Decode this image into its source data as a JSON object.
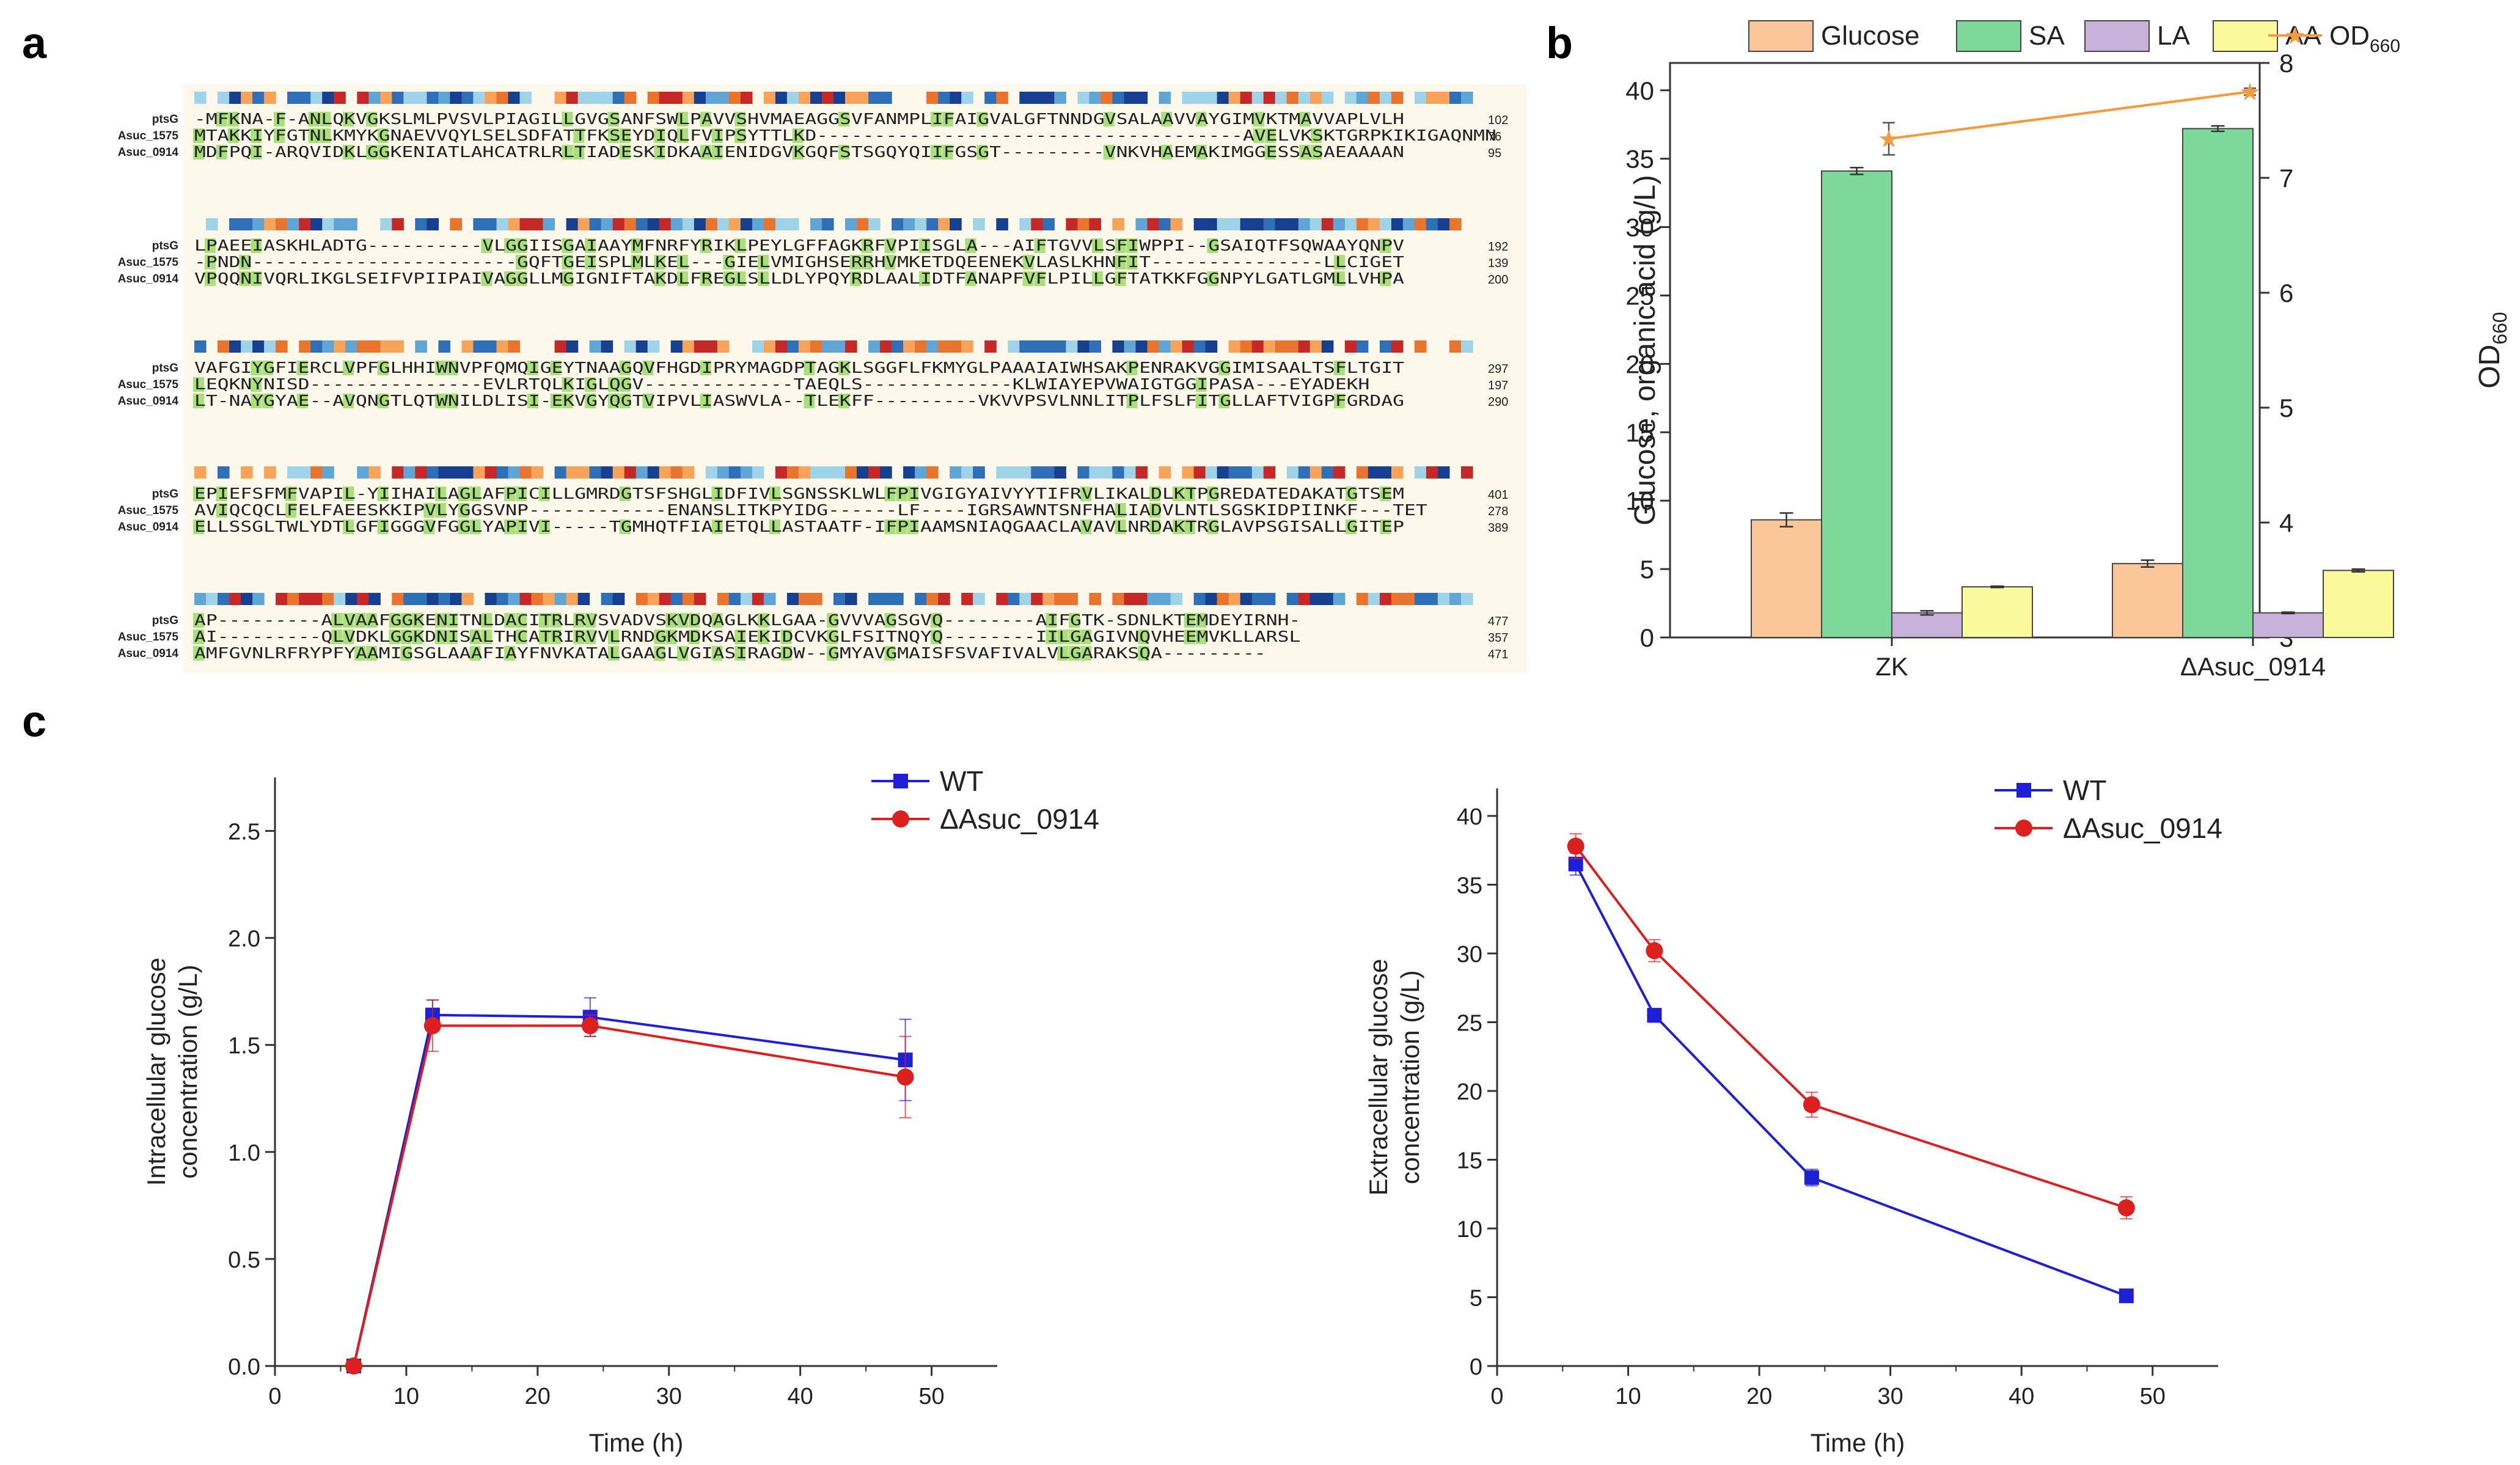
{
  "panels": {
    "a": "a",
    "b": "b",
    "c": "c"
  },
  "alignment": {
    "blocks": [
      {
        "rows": [
          {
            "name": "ptsG",
            "seq": "-MFKNA-F-ANLQKVGKSLMLPVSVLPIAGILLGVGSANFSWLPAVVSHVMAEAGGSVFANMPLIFAIGVALGFTNNDGVSALAAVVAYGIMVKTMAVVAPLVLH",
            "end": "102"
          },
          {
            "name": "Asuc_1575",
            "seq": "MTAKKIYFGTNLKMYKGNAEVVQYLSELSDFATTFKSEYDIQLFVIPSYTTLKD-------------------------------------AVELVKSKTGRPKIKIGAQNMN",
            "end": "76"
          },
          {
            "name": "Asuc_0914",
            "seq": "MDFPQI-ARQVIDKLGGKENIATLAHCATRLRLTIADESKIDKAAIENIDGVKGQFSTSGQYQIIFGSGT---------VNKVHAEMAKIMGGESSASAEAAAAN",
            "end": "95"
          }
        ]
      },
      {
        "rows": [
          {
            "name": "ptsG",
            "seq": "LPAEEIASKHLADTG----------VLGGIISGAIAAYMFNRFYRIKLPEYLGFFAGKRFVPIISGLA---AIFTGVVLSFIWPPI--GSAIQTFSQWAAYQNPV",
            "end": "192"
          },
          {
            "name": "Asuc_1575",
            "seq": "-PNDN-----------------------GQFTGEISPLMLKEL---GIELVMIGHSERRHVMKETDQEENEKVLASLKHNFIT---------------LLCIGET",
            "end": "139"
          },
          {
            "name": "Asuc_0914",
            "seq": "VPQQNIVQRLIKGLSEIFVPIIPAIVAGGLLMGIGNIFTAKDLFREGLSLLDLYPQYRDLAALIDTFANAPFVFLPILLGFTATKKFGGNPYLGATLGMLLVHPA",
            "end": "200"
          }
        ]
      },
      {
        "rows": [
          {
            "name": "ptsG",
            "seq": "VAFGIYGFIERCLVPFGLHHIWNVPFQMQIGEYTNAAGQVFHGDIPRYMAGDPTAGKLSGGFLFKMYGLPAAAIAIWHSAKPENRAKVGGIMISAALTSFLTGIT",
            "end": "297"
          },
          {
            "name": "Asuc_1575",
            "seq": "LEQKNYNISD---------------EVLRTQLKIGLQGV-------------TAEQLS-------------KLWIAYEPVWAIGTGGIPASA---EYADEKH",
            "end": "197"
          },
          {
            "name": "Asuc_0914",
            "seq": "LT-NAYGYAE--AVQNGTLQTWNILDLISI-EKVGYQGTVIPVLIASWVLA--TLEKFF---------VKVVPSVLNNLITPLFSLFITGLLAFTVIGPFGRDAG",
            "end": "290"
          }
        ]
      },
      {
        "rows": [
          {
            "name": "ptsG",
            "seq": "EPIEFSFMFVAPIL-YIIHAILAGLAFPICILLGMRDGTSFSHGLIDFIVLSGNSSKLWLFPIVGIGYAIVYYTIFRVLIKALDLKTPGREDATEDAKATGTSEM",
            "end": "401"
          },
          {
            "name": "Asuc_1575",
            "seq": "AVIQCQCLFELFAEESKKIPVLYGGSVNP------------ENANSLITKPYIDG------LF----IGRSAWNTSNFHALIADVLNTLSGSKIDPIINKF---TET",
            "end": "278"
          },
          {
            "name": "Asuc_0914",
            "seq": "ELLSSGLTWLYDTLGFIGGGVFGGLYAPIVI-----TGMHQTFIAIETQLLASTAATF-IFPIAAMSNIAQGAACLAVAVLNRDAKTRGLAVPSGISALLGITEP",
            "end": "389"
          }
        ]
      },
      {
        "rows": [
          {
            "name": "ptsG",
            "seq": "AP---------ALVAAFGGKENITNLDACITRLRVSVADVSKVDQAGLKKLGAA-GVVVAGSGVQ--------AIFGTK-SDNLKTEMDEYIRNH-",
            "end": "477"
          },
          {
            "name": "Asuc_1575",
            "seq": "AI---------QLVDKLGGKDNISALTHCATRIRVVLRNDGKMDKSAIEKIDCVKGLFSITNQYQ--------IILGAGIVNQVHEEMVKLLARSL",
            "end": "357"
          },
          {
            "name": "Asuc_0914",
            "seq": "AMFGVNLRFRYPFYAAMIGSGLAAAFIAYFNVKATALGAAGLVGIASIRAGDW--GMYAVGMAISFSVAFIVALVLGARAKSQA---------",
            "end": "471"
          }
        ]
      }
    ],
    "colors": {
      "background": "#fdf8ec",
      "highlight": "#a8e07a",
      "conservation": [
        "#173f8f",
        "#2e6fb8",
        "#5fa5d6",
        "#9fd3e8",
        "#f7a35a",
        "#e8742e",
        "#c62828"
      ]
    }
  },
  "chart_data": [
    {
      "id": "b",
      "type": "bar",
      "categories": [
        "ZK",
        "ΔAsuc_0914"
      ],
      "series": [
        {
          "name": "Glucose",
          "color": "#fbc79a",
          "values": [
            8.6,
            5.4
          ],
          "errors": [
            0.5,
            0.25
          ]
        },
        {
          "name": "SA",
          "color": "#7dd89a",
          "values": [
            34.1,
            37.2
          ],
          "errors": [
            0.25,
            0.2
          ]
        },
        {
          "name": "LA",
          "color": "#c7b1d8",
          "values": [
            1.8,
            1.8
          ],
          "errors": [
            0.15,
            0.05
          ]
        },
        {
          "name": "AA",
          "color": "#fbfa9c",
          "values": [
            3.7,
            4.9
          ],
          "errors": [
            0.05,
            0.1
          ]
        }
      ],
      "line_series": {
        "name": "OD",
        "name_sub": "660",
        "color": "#f39a3c",
        "values": [
          7.34,
          7.75
        ],
        "errors": [
          0.14,
          0.03
        ]
      },
      "ylabel": "Glucose, organic acid (g/L)",
      "y2label": "OD",
      "y2label_sub": "660",
      "ylim": [
        0,
        42
      ],
      "y2lim": [
        3,
        8
      ],
      "yticks": [
        "0",
        "5",
        "10",
        "15",
        "20",
        "25",
        "30",
        "35",
        "40"
      ],
      "y2ticks": [
        "3",
        "4",
        "5",
        "6",
        "7",
        "8"
      ],
      "legend": "top"
    },
    {
      "id": "c1",
      "type": "line",
      "x": [
        6,
        12,
        24,
        48
      ],
      "series": [
        {
          "name": "WT",
          "color": "#1f1fd6",
          "marker": "square",
          "values": [
            0.0,
            1.64,
            1.63,
            1.43
          ],
          "errors": [
            0.0,
            0.07,
            0.09,
            0.19
          ]
        },
        {
          "name": "ΔAsuc_0914",
          "color": "#dc1f1f",
          "marker": "circle",
          "values": [
            0.0,
            1.59,
            1.59,
            1.35
          ],
          "errors": [
            0.0,
            0.12,
            0.05,
            0.19
          ]
        }
      ],
      "xlabel": "Time (h)",
      "ylabel": "Intracellular glucose",
      "ylabel2": "concentration (g/L)",
      "xlim": [
        0,
        55
      ],
      "ylim": [
        0,
        2.75
      ],
      "xticks": [
        "0",
        "10",
        "20",
        "30",
        "40",
        "50"
      ],
      "yticks": [
        "0.0",
        "0.5",
        "1.0",
        "1.5",
        "2.0",
        "2.5"
      ],
      "legend": "top-center"
    },
    {
      "id": "c2",
      "type": "line",
      "x": [
        6,
        12,
        24,
        48
      ],
      "series": [
        {
          "name": "WT",
          "color": "#1f1fd6",
          "marker": "square",
          "values": [
            36.5,
            25.5,
            13.7,
            5.1
          ],
          "errors": [
            0.8,
            0.5,
            0.6,
            0.2
          ]
        },
        {
          "name": "ΔAsuc_0914",
          "color": "#dc1f1f",
          "marker": "circle",
          "values": [
            37.8,
            30.2,
            19.0,
            11.5
          ],
          "errors": [
            0.9,
            0.8,
            0.9,
            0.8
          ]
        }
      ],
      "xlabel": "Time (h)",
      "ylabel": "Extracellular glucose",
      "ylabel2": "concentration (g/L)",
      "xlim": [
        0,
        55
      ],
      "ylim": [
        0,
        42
      ],
      "xticks": [
        "0",
        "10",
        "20",
        "30",
        "40",
        "50"
      ],
      "yticks": [
        "0",
        "5",
        "10",
        "15",
        "20",
        "25",
        "30",
        "35",
        "40"
      ],
      "legend": "top-center"
    }
  ]
}
